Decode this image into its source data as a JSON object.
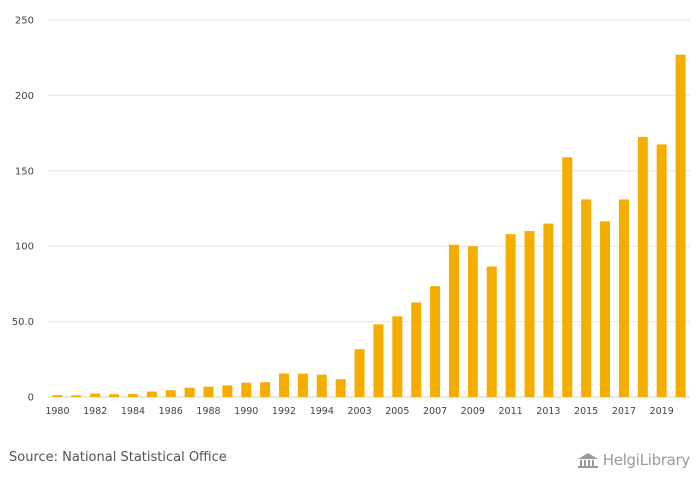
{
  "footer": {
    "source": "Source: National Statistical Office",
    "logo_text": "HelgiLibrary"
  },
  "colors": {
    "bar": "#F5AE00",
    "grid": "#e6e6e6",
    "axis": "#cccccc"
  },
  "chart_data": {
    "type": "bar",
    "title": "",
    "xlabel": "",
    "ylabel": "",
    "ylim": [
      0,
      250
    ],
    "y_ticks": [
      "0",
      "50.0",
      "100",
      "150",
      "200",
      "250"
    ],
    "y_tick_values": [
      0,
      50,
      100,
      150,
      200,
      250
    ],
    "categories": [
      "1980",
      "1981",
      "1982",
      "1983",
      "1984",
      "1985",
      "1986",
      "1987",
      "1988",
      "1989",
      "1990",
      "1991",
      "1992",
      "1993",
      "1994",
      "2002",
      "2003",
      "2004",
      "2005",
      "2006",
      "2007",
      "2008",
      "2009",
      "2010",
      "2011",
      "2012",
      "2013",
      "2014",
      "2015",
      "2016",
      "2017",
      "2018",
      "2019",
      "2020"
    ],
    "x_tick_labels": [
      "1980",
      "",
      "1982",
      "",
      "1984",
      "",
      "1986",
      "",
      "1988",
      "",
      "1990",
      "",
      "1992",
      "",
      "1994",
      "",
      "2003",
      "",
      "2005",
      "",
      "2007",
      "",
      "2009",
      "",
      "2011",
      "",
      "2013",
      "",
      "2015",
      "",
      "2017",
      "",
      "2019",
      ""
    ],
    "values": [
      1.2,
      1.1,
      2.3,
      1.8,
      1.9,
      3.6,
      4.5,
      6.2,
      6.8,
      7.7,
      9.5,
      9.8,
      15.6,
      15.5,
      14.8,
      11.8,
      31.7,
      48.2,
      53.5,
      62.7,
      73.5,
      101,
      100,
      86.5,
      108,
      110,
      115,
      159,
      131,
      116.5,
      131,
      172.5,
      167.5,
      227
    ]
  }
}
